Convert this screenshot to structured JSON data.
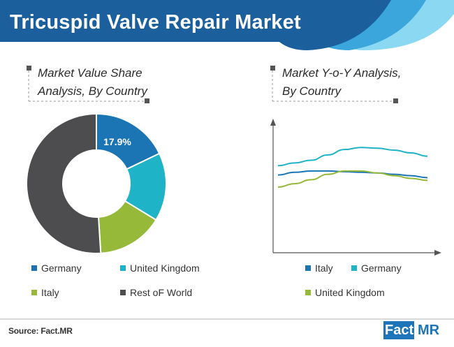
{
  "header": {
    "title": "Tricuspid Valve Repair Market"
  },
  "captions": {
    "left_line1": "Market Value Share",
    "left_line2": "Analysis, By Country",
    "right_line1": "Market Y-o-Y Analysis,",
    "right_line2": "By Country"
  },
  "chart_data": [
    {
      "type": "pie",
      "style": "donut",
      "categories": [
        "Germany",
        "United Kingdom",
        "Italy",
        "Rest oF World"
      ],
      "values": [
        17.9,
        15.8,
        15.3,
        51.0
      ],
      "data_labels": [
        "17.9%",
        "",
        "",
        ""
      ],
      "colors": [
        "#1b75b5",
        "#1fb3c7",
        "#96b93a",
        "#4d4d4f"
      ],
      "legend": "bottom"
    },
    {
      "type": "line",
      "x": [
        1,
        2,
        3,
        4,
        5,
        6,
        7,
        8,
        9,
        10
      ],
      "series": [
        {
          "name": "Italy",
          "values": [
            5.8,
            6.0,
            6.1,
            6.1,
            6.05,
            6.0,
            5.95,
            5.85,
            5.75,
            5.6
          ],
          "color": "#1b75b5"
        },
        {
          "name": "Germany",
          "values": [
            6.5,
            6.7,
            6.9,
            7.3,
            7.7,
            7.85,
            7.8,
            7.65,
            7.45,
            7.2
          ],
          "color": "#1fb3c7"
        },
        {
          "name": "United Kingdom",
          "values": [
            4.9,
            5.15,
            5.45,
            5.85,
            6.1,
            6.1,
            5.95,
            5.75,
            5.55,
            5.4
          ],
          "color": "#96b93a"
        }
      ],
      "ylim": [
        0,
        10
      ],
      "grid": false,
      "legend": "bottom"
    }
  ],
  "legend_left": [
    "Germany",
    "United Kingdom",
    "Italy",
    "Rest oF World"
  ],
  "legend_right": [
    "Italy",
    "Germany",
    "United Kingdom"
  ],
  "footer": {
    "source": "Source: Fact.MR",
    "logo_left": "Fact.",
    "logo_right": "MR"
  },
  "colors": {
    "header_dark": "#1b5f9c",
    "header_mid": "#2a8fd0",
    "header_light": "#7fd3f0",
    "axis": "#555555"
  }
}
